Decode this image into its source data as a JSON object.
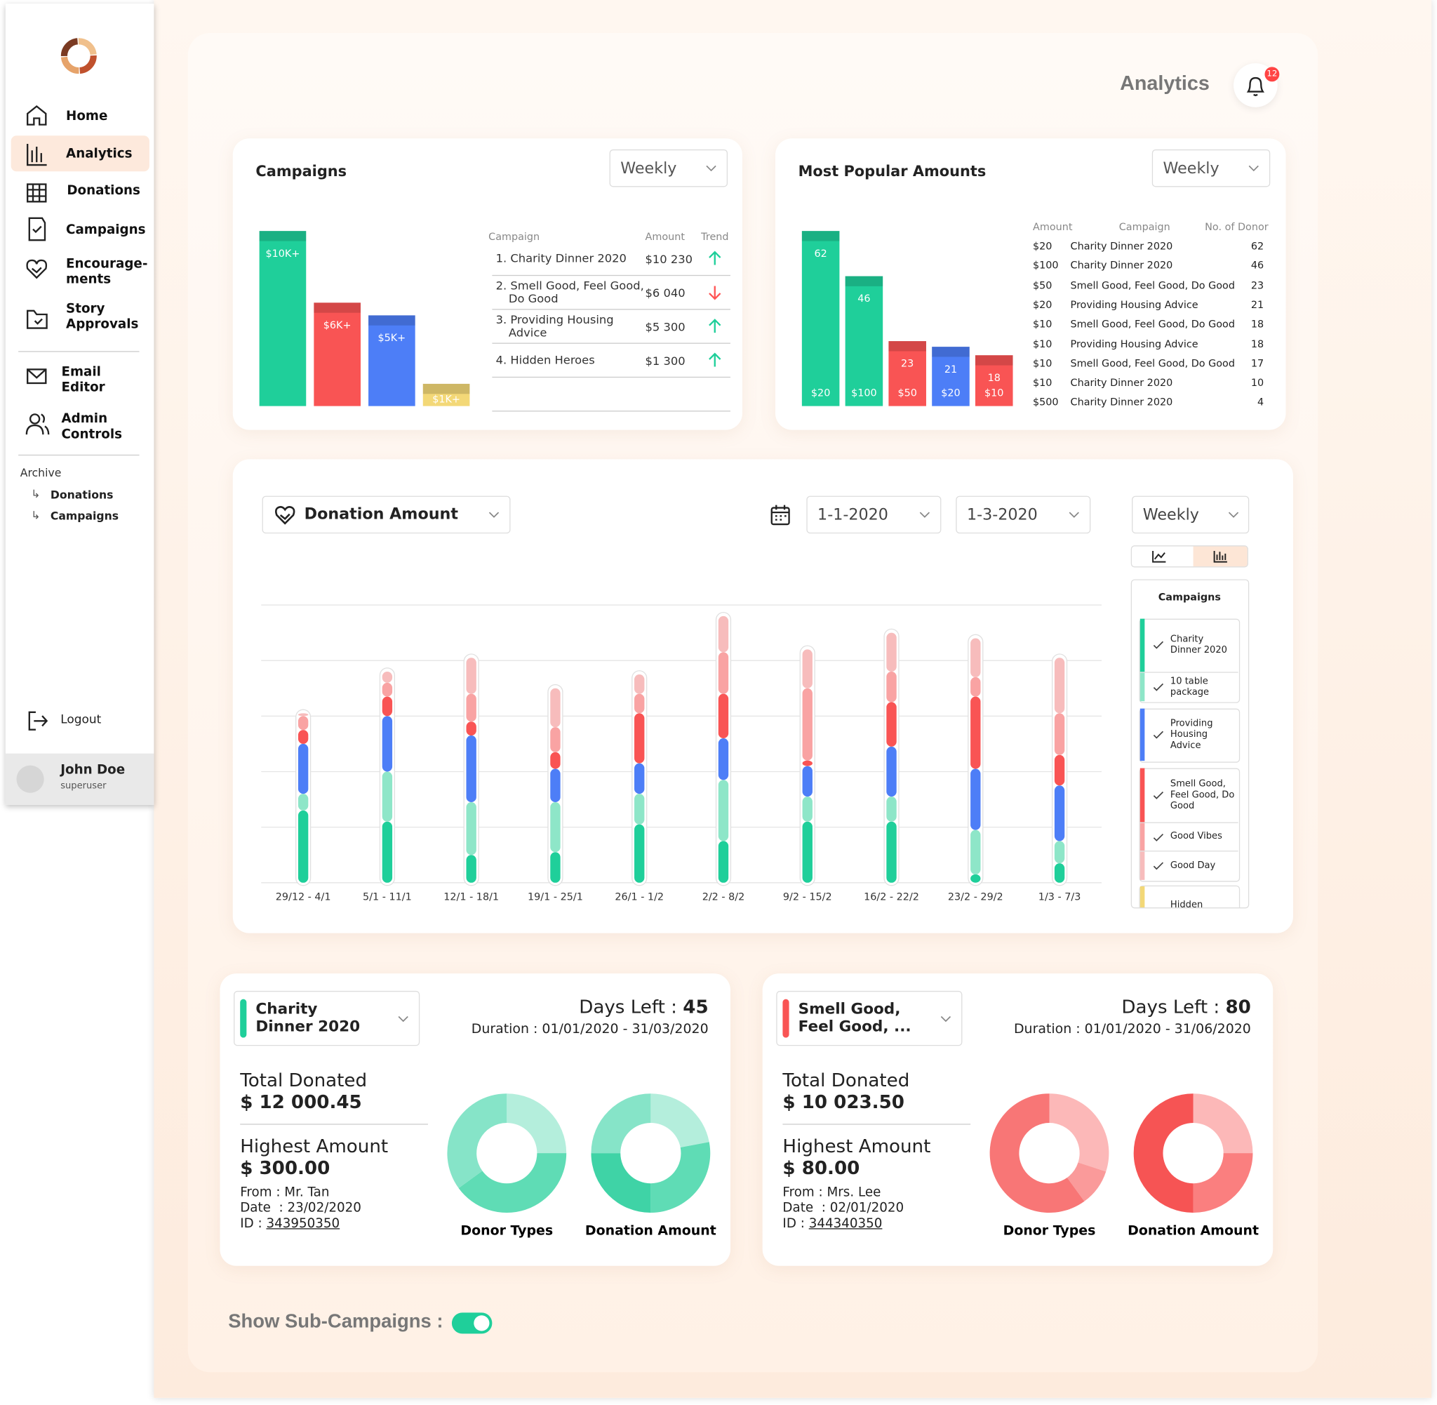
{
  "sidebar": {
    "nav": [
      "Home",
      "Analytics",
      "Donations",
      "Campaigns",
      "Encourage-\nments",
      "Story\nApprovals",
      "Email\nEditor",
      "Admin\nControls"
    ],
    "active": 1,
    "archive": {
      "title": "Archive",
      "items": [
        "Donations",
        "Campaigns"
      ]
    },
    "logout": "Logout",
    "user": {
      "name": "John Doe",
      "role": "superuser"
    }
  },
  "header": {
    "title": "Analytics",
    "notifications": 12
  },
  "campaigns": {
    "title": "Campaigns",
    "period": "Weekly",
    "chart_data": {
      "type": "bar",
      "categories": [
        null,
        null,
        null,
        null
      ],
      "values": [
        10230,
        6040,
        5300,
        1300
      ],
      "value_labels": [
        "$10K+",
        "$6K+",
        "$5K+",
        "$1K+"
      ],
      "colors": [
        "#1fcf9a",
        "#f95454",
        "#4d7ef7",
        "#f3d877"
      ],
      "ylim": [
        0,
        10230
      ]
    },
    "table": {
      "columns": [
        "Campaign",
        "Amount",
        "Trend"
      ],
      "rows": [
        {
          "campaign": "1. Charity Dinner 2020",
          "amount": "$10 230",
          "trend": "up"
        },
        {
          "campaign": "2. Smell Good, Feel Good, Do Good",
          "amount": "$6 040",
          "trend": "down"
        },
        {
          "campaign": "3. Providing Housing Advice",
          "amount": "$5 300",
          "trend": "up"
        },
        {
          "campaign": "4. Hidden Heroes",
          "amount": "$1 300",
          "trend": "up"
        }
      ]
    }
  },
  "popular": {
    "title": "Most Popular Amounts",
    "period": "Weekly",
    "chart_data": {
      "type": "bar",
      "categories": [
        "$20",
        "$100",
        "$50",
        "$20",
        "$10"
      ],
      "values": [
        62,
        46,
        23,
        21,
        18
      ],
      "colors": [
        "#1fcf9a",
        "#1fcf9a",
        "#f95454",
        "#4d7ef7",
        "#f95454"
      ],
      "ylim": [
        0,
        62
      ]
    },
    "table": {
      "columns": [
        "Amount",
        "Campaign",
        "No. of Donor"
      ],
      "rows": [
        [
          "$20",
          "Charity Dinner 2020",
          62
        ],
        [
          "$100",
          "Charity Dinner 2020",
          46
        ],
        [
          "$50",
          "Smell Good, Feel Good, Do Good",
          23
        ],
        [
          "$20",
          "Providing Housing Advice",
          21
        ],
        [
          "$10",
          "Smell Good, Feel Good, Do Good",
          18
        ],
        [
          "$10",
          "Providing Housing Advice",
          18
        ],
        [
          "$10",
          "Smell Good, Feel Good, Do Good",
          17
        ],
        [
          "$10",
          "Charity Dinner 2020",
          10
        ],
        [
          "$500",
          "Charity Dinner 2020",
          4
        ]
      ]
    }
  },
  "donations": {
    "metric": "Donation Amount",
    "date_from": "1-1-2020",
    "date_to": "1-3-2020",
    "period": "Weekly",
    "chart_data": {
      "type": "stacked_bar",
      "grid": true,
      "ylim": [
        0,
        5
      ],
      "categories": [
        "29/12 - 4/1",
        "5/1 - 11/1",
        "12/1 - 18/1",
        "19/1 - 25/1",
        "26/1 - 1/2",
        "2/2 - 8/2",
        "9/2 - 15/2",
        "16/2 - 22/2",
        "23/2 - 29/2",
        "1/3 - 7/3"
      ],
      "series": [
        {
          "name": "Charity Dinner 2020",
          "color": "#1fcf9a",
          "values": [
            1.3,
            1.1,
            0.5,
            0.55,
            1.05,
            0.75,
            1.1,
            1.1,
            0.15,
            0.35
          ]
        },
        {
          "name": "10 table package",
          "color": "#8ee6c8",
          "values": [
            0.3,
            0.9,
            0.95,
            0.9,
            0.55,
            1.1,
            0.45,
            0.45,
            0.8,
            0.4
          ]
        },
        {
          "name": "Providing Housing Advice",
          "color": "#4d7ef7",
          "values": [
            0.9,
            1.0,
            1.2,
            0.6,
            0.55,
            0.75,
            0.55,
            0.9,
            1.1,
            1.0
          ]
        },
        {
          "name": "Smell Good, Feel Good, Do Good",
          "color": "#f95454",
          "values": [
            0.25,
            0.35,
            0.25,
            0.3,
            0.9,
            0.8,
            0.1,
            0.8,
            1.3,
            0.55
          ]
        },
        {
          "name": "Good Vibes",
          "color": "#f9a3a3",
          "values": [
            0.25,
            0.25,
            0.5,
            0.45,
            0.35,
            0.75,
            1.3,
            0.55,
            0.35,
            0.75
          ]
        },
        {
          "name": "Good Day",
          "color": "#f7bcbc",
          "values": [
            0.05,
            0.2,
            0.65,
            0.7,
            0.35,
            0.65,
            0.7,
            0.7,
            0.7,
            1.0
          ]
        }
      ]
    },
    "filter": {
      "title": "Campaigns",
      "more": "Hidden"
    }
  },
  "summaries": [
    {
      "campaign": "Charity\nDinner 2020",
      "color": "#1fcf9a",
      "days_left_label": "Days Left : ",
      "days_left": 45,
      "duration": "Duration : 01/01/2020 - 31/03/2020",
      "total_label": "Total Donated",
      "total": "$ 12 000.45",
      "highest_label": "Highest Amount",
      "highest": "$ 300.00",
      "from": "From : Mr. Tan",
      "date": "Date  : 23/02/2020",
      "id_label": "ID : ",
      "id": "343950350",
      "donuts": [
        {
          "chart_data": {
            "type": "donut",
            "title": "Donor Types",
            "values": [
              25,
              40,
              35
            ],
            "colors": [
              "#b4eedc",
              "#5fdcb5",
              "#86e4c8"
            ]
          }
        },
        {
          "chart_data": {
            "type": "donut",
            "title": "Donation Amount",
            "values": [
              22,
              28,
              25,
              25
            ],
            "colors": [
              "#b4eedc",
              "#5fdcb5",
              "#3fd3a6",
              "#86e4c8"
            ]
          }
        }
      ]
    },
    {
      "campaign": "Smell Good,\nFeel Good, ...",
      "color": "#f95454",
      "days_left_label": "Days Left : ",
      "days_left": 80,
      "duration": "Duration : 01/01/2020 - 31/06/2020",
      "total_label": "Total Donated",
      "total": "$ 10 023.50",
      "highest_label": "Highest Amount",
      "highest": "$ 80.00",
      "from": "From : Mrs. Lee",
      "date": "Date  : 02/01/2020",
      "id_label": "ID : ",
      "id": "344340350",
      "donuts": [
        {
          "chart_data": {
            "type": "donut",
            "title": "Donor Types",
            "values": [
              30,
              10,
              60
            ],
            "colors": [
              "#fcb8b8",
              "#fa9a9a",
              "#f87676"
            ]
          }
        },
        {
          "chart_data": {
            "type": "donut",
            "title": "Donation Amount",
            "values": [
              25,
              25,
              50
            ],
            "colors": [
              "#fcb8b8",
              "#fa7f7f",
              "#f65454"
            ]
          }
        }
      ]
    }
  ],
  "show_sub_campaigns": {
    "label": "Show Sub-Campaigns :",
    "on": true
  }
}
